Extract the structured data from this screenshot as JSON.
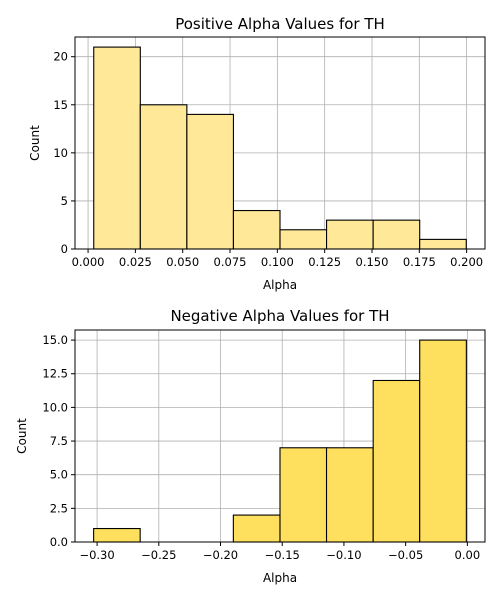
{
  "chart_data": [
    {
      "type": "bar",
      "title": "Positive Alpha Values for TH",
      "xlabel": "Alpha",
      "ylabel": "Count",
      "bar_color": "#FFE898",
      "bins": [
        {
          "x0": 0.003,
          "x1": 0.0276,
          "count": 21
        },
        {
          "x0": 0.0276,
          "x1": 0.0522,
          "count": 15
        },
        {
          "x0": 0.0522,
          "x1": 0.0768,
          "count": 14
        },
        {
          "x0": 0.0768,
          "x1": 0.1014,
          "count": 4
        },
        {
          "x0": 0.1014,
          "x1": 0.126,
          "count": 2
        },
        {
          "x0": 0.126,
          "x1": 0.1506,
          "count": 3
        },
        {
          "x0": 0.1506,
          "x1": 0.1752,
          "count": 3
        },
        {
          "x0": 0.1752,
          "x1": 0.1998,
          "count": 1
        }
      ],
      "xlim": [
        -0.0069,
        0.2097
      ],
      "ylim": [
        0,
        22.05
      ],
      "xticks": [
        0.0,
        0.025,
        0.05,
        0.075,
        0.1,
        0.125,
        0.15,
        0.175,
        0.2
      ],
      "xtick_labels": [
        "0.000",
        "0.025",
        "0.050",
        "0.075",
        "0.100",
        "0.125",
        "0.150",
        "0.175",
        "0.200"
      ],
      "yticks": [
        0,
        5,
        10,
        15,
        20
      ],
      "ytick_labels": [
        "0",
        "5",
        "10",
        "15",
        "20"
      ],
      "grid": true
    },
    {
      "type": "bar",
      "title": "Negative Alpha Values for TH",
      "xlabel": "Alpha",
      "ylabel": "Count",
      "bar_color": "#FFDF5E",
      "bins": [
        {
          "x0": -0.3028,
          "x1": -0.2651,
          "count": 1
        },
        {
          "x0": -0.2651,
          "x1": -0.2273,
          "count": 0
        },
        {
          "x0": -0.2273,
          "x1": -0.1896,
          "count": 0
        },
        {
          "x0": -0.1896,
          "x1": -0.1518,
          "count": 2
        },
        {
          "x0": -0.1518,
          "x1": -0.1141,
          "count": 7
        },
        {
          "x0": -0.1141,
          "x1": -0.0763,
          "count": 7
        },
        {
          "x0": -0.0763,
          "x1": -0.0386,
          "count": 12
        },
        {
          "x0": -0.0386,
          "x1": -0.0008,
          "count": 15
        }
      ],
      "xlim": [
        -0.3179,
        0.0143
      ],
      "ylim": [
        0,
        15.75
      ],
      "xticks": [
        -0.3,
        -0.25,
        -0.2,
        -0.15,
        -0.1,
        -0.05,
        0.0
      ],
      "xtick_labels": [
        "−0.30",
        "−0.25",
        "−0.20",
        "−0.15",
        "−0.10",
        "−0.05",
        "0.00"
      ],
      "yticks": [
        0,
        2.5,
        5,
        7.5,
        10,
        12.5,
        15
      ],
      "ytick_labels": [
        "0.0",
        "2.5",
        "5.0",
        "7.5",
        "10.0",
        "12.5",
        "15.0"
      ],
      "grid": true
    }
  ]
}
